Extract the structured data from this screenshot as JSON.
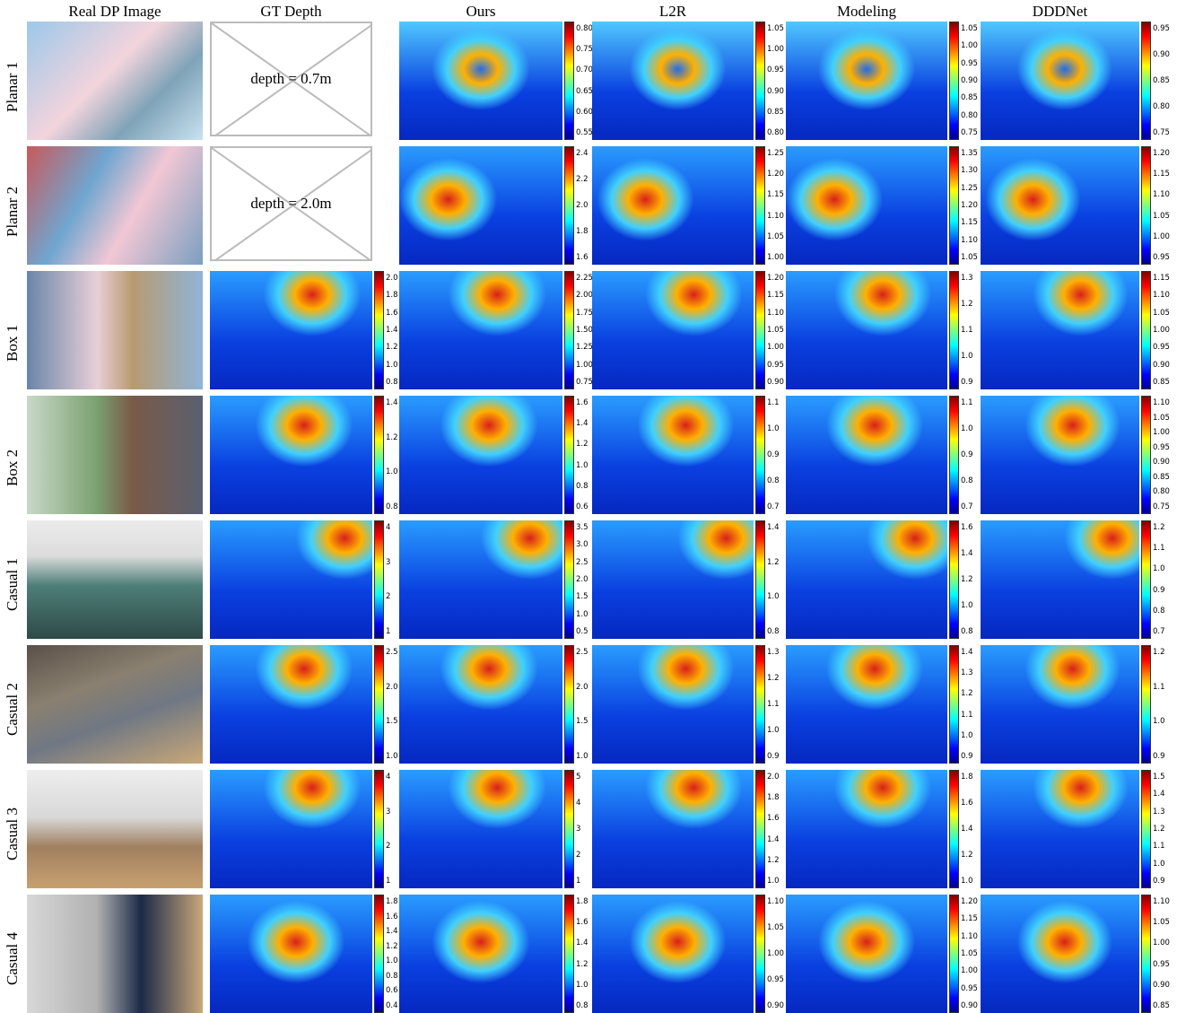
{
  "columns": [
    "Real DP Image",
    "GT Depth",
    "Ours",
    "L2R",
    "Modeling",
    "DDDNet"
  ],
  "rows": [
    {
      "label": "Planar 1",
      "gt_text": "depth = 0.7m",
      "colorbars": {
        "ours": [
          "0.80",
          "0.75",
          "0.70",
          "0.65",
          "0.60",
          "0.55"
        ],
        "l2r": [
          "1.05",
          "1.00",
          "0.95",
          "0.90",
          "0.85",
          "0.80"
        ],
        "modeling": [
          "1.05",
          "1.00",
          "0.95",
          "0.90",
          "0.85",
          "0.80",
          "0.75"
        ],
        "dddnet": [
          "0.95",
          "0.90",
          "0.85",
          "0.80",
          "0.75"
        ]
      }
    },
    {
      "label": "Planar 2",
      "gt_text": "depth = 2.0m",
      "colorbars": {
        "ours": [
          "2.4",
          "2.2",
          "2.0",
          "1.8",
          "1.6"
        ],
        "l2r": [
          "1.25",
          "1.20",
          "1.15",
          "1.10",
          "1.05",
          "1.00"
        ],
        "modeling": [
          "1.35",
          "1.30",
          "1.25",
          "1.20",
          "1.15",
          "1.10",
          "1.05"
        ],
        "dddnet": [
          "1.20",
          "1.15",
          "1.10",
          "1.05",
          "1.00",
          "0.95"
        ]
      }
    },
    {
      "label": "Box 1",
      "colorbars": {
        "gt": [
          "2.0",
          "1.8",
          "1.6",
          "1.4",
          "1.2",
          "1.0",
          "0.8"
        ],
        "ours": [
          "2.25",
          "2.00",
          "1.75",
          "1.50",
          "1.25",
          "1.00",
          "0.75"
        ],
        "l2r": [
          "1.20",
          "1.15",
          "1.10",
          "1.05",
          "1.00",
          "0.95",
          "0.90"
        ],
        "modeling": [
          "1.3",
          "1.2",
          "1.1",
          "1.0",
          "0.9"
        ],
        "dddnet": [
          "1.15",
          "1.10",
          "1.05",
          "1.00",
          "0.95",
          "0.90",
          "0.85"
        ]
      }
    },
    {
      "label": "Box 2",
      "colorbars": {
        "gt": [
          "1.4",
          "1.2",
          "1.0",
          "0.8"
        ],
        "ours": [
          "1.6",
          "1.4",
          "1.2",
          "1.0",
          "0.8",
          "0.6"
        ],
        "l2r": [
          "1.1",
          "1.0",
          "0.9",
          "0.8",
          "0.7"
        ],
        "modeling": [
          "1.1",
          "1.0",
          "0.9",
          "0.8",
          "0.7"
        ],
        "dddnet": [
          "1.10",
          "1.05",
          "1.00",
          "0.95",
          "0.90",
          "0.85",
          "0.80",
          "0.75"
        ]
      }
    },
    {
      "label": "Casual 1",
      "colorbars": {
        "gt": [
          "4",
          "3",
          "2",
          "1"
        ],
        "ours": [
          "3.5",
          "3.0",
          "2.5",
          "2.0",
          "1.5",
          "1.0",
          "0.5"
        ],
        "l2r": [
          "1.4",
          "1.2",
          "1.0",
          "0.8"
        ],
        "modeling": [
          "1.6",
          "1.4",
          "1.2",
          "1.0",
          "0.8"
        ],
        "dddnet": [
          "1.2",
          "1.1",
          "1.0",
          "0.9",
          "0.8",
          "0.7"
        ]
      }
    },
    {
      "label": "Casual 2",
      "colorbars": {
        "gt": [
          "2.5",
          "2.0",
          "1.5",
          "1.0"
        ],
        "ours": [
          "2.5",
          "2.0",
          "1.5",
          "1.0"
        ],
        "l2r": [
          "1.3",
          "1.2",
          "1.1",
          "1.0",
          "0.9"
        ],
        "modeling": [
          "1.4",
          "1.3",
          "1.2",
          "1.1",
          "1.0",
          "0.9"
        ],
        "dddnet": [
          "1.2",
          "1.1",
          "1.0",
          "0.9"
        ]
      }
    },
    {
      "label": "Casual 3",
      "colorbars": {
        "gt": [
          "4",
          "3",
          "2",
          "1"
        ],
        "ours": [
          "5",
          "4",
          "3",
          "2",
          "1"
        ],
        "l2r": [
          "2.0",
          "1.8",
          "1.6",
          "1.4",
          "1.2",
          "1.0"
        ],
        "modeling": [
          "1.8",
          "1.6",
          "1.4",
          "1.2",
          "1.0"
        ],
        "dddnet": [
          "1.5",
          "1.4",
          "1.3",
          "1.2",
          "1.1",
          "1.0",
          "0.9"
        ]
      }
    },
    {
      "label": "Casual 4",
      "colorbars": {
        "gt": [
          "1.8",
          "1.6",
          "1.4",
          "1.2",
          "1.0",
          "0.8",
          "0.6",
          "0.4"
        ],
        "ours": [
          "1.8",
          "1.6",
          "1.4",
          "1.2",
          "1.0",
          "0.8"
        ],
        "l2r": [
          "1.10",
          "1.05",
          "1.00",
          "0.95",
          "0.90"
        ],
        "modeling": [
          "1.20",
          "1.15",
          "1.10",
          "1.05",
          "1.00",
          "0.95",
          "0.90"
        ],
        "dddnet": [
          "1.10",
          "1.05",
          "1.00",
          "0.95",
          "0.90",
          "0.85"
        ]
      }
    }
  ]
}
